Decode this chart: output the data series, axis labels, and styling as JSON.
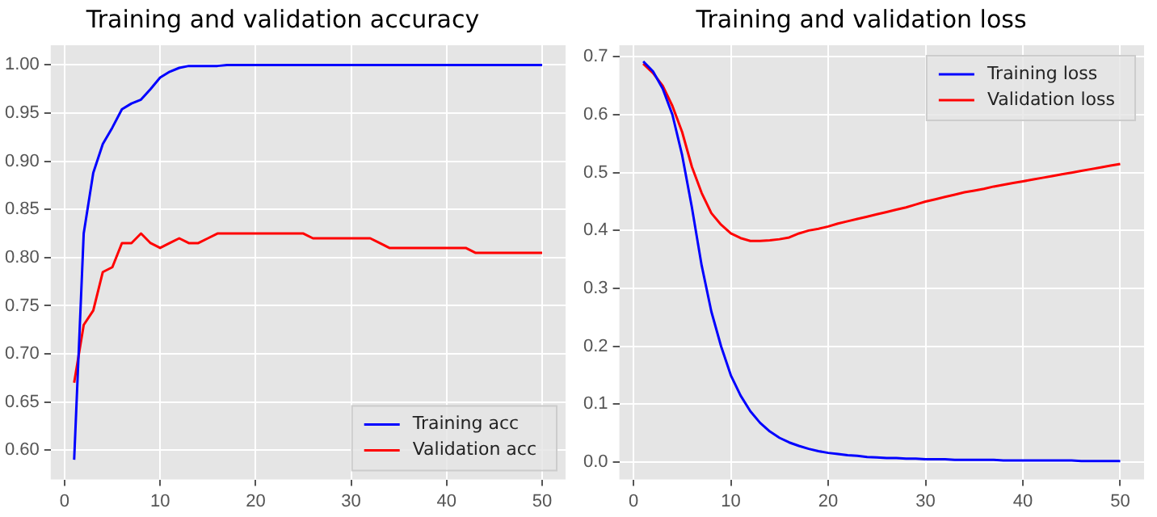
{
  "chart_data": [
    {
      "type": "line",
      "title": "Training and validation accuracy",
      "xlim": [
        -1.45,
        52.45
      ],
      "xticks": [
        0,
        10,
        20,
        30,
        40,
        50
      ],
      "ylim": [
        0.5695,
        1.0205
      ],
      "yticks": [
        {
          "value": 0.6,
          "label": "0.60"
        },
        {
          "value": 0.65,
          "label": "0.65"
        },
        {
          "value": 0.7,
          "label": "0.70"
        },
        {
          "value": 0.75,
          "label": "0.75"
        },
        {
          "value": 0.8,
          "label": "0.80"
        },
        {
          "value": 0.85,
          "label": "0.85"
        },
        {
          "value": 0.9,
          "label": "0.90"
        },
        {
          "value": 0.95,
          "label": "0.95"
        },
        {
          "value": 1.0,
          "label": "1.00"
        }
      ],
      "grid": true,
      "legend": "bottom right",
      "marker": "none",
      "line_style": "solid",
      "x": [
        1,
        2,
        3,
        4,
        5,
        6,
        7,
        8,
        9,
        10,
        11,
        12,
        13,
        14,
        15,
        16,
        17,
        18,
        19,
        20,
        21,
        22,
        23,
        24,
        25,
        26,
        27,
        28,
        29,
        30,
        31,
        32,
        33,
        34,
        35,
        36,
        37,
        38,
        39,
        40,
        41,
        42,
        43,
        44,
        45,
        46,
        47,
        48,
        49,
        50
      ],
      "series": [
        {
          "name": "Training acc",
          "color": "#0000ff",
          "values": [
            0.59,
            0.825,
            0.888,
            0.918,
            0.935,
            0.954,
            0.96,
            0.964,
            0.975,
            0.987,
            0.993,
            0.997,
            0.999,
            0.999,
            0.999,
            0.999,
            1.0,
            1.0,
            1.0,
            1.0,
            1.0,
            1.0,
            1.0,
            1.0,
            1.0,
            1.0,
            1.0,
            1.0,
            1.0,
            1.0,
            1.0,
            1.0,
            1.0,
            1.0,
            1.0,
            1.0,
            1.0,
            1.0,
            1.0,
            1.0,
            1.0,
            1.0,
            1.0,
            1.0,
            1.0,
            1.0,
            1.0,
            1.0,
            1.0,
            1.0
          ]
        },
        {
          "name": "Validation acc",
          "color": "#ff0000",
          "values": [
            0.67,
            0.73,
            0.745,
            0.785,
            0.79,
            0.815,
            0.815,
            0.825,
            0.815,
            0.81,
            0.815,
            0.82,
            0.815,
            0.815,
            0.82,
            0.825,
            0.825,
            0.825,
            0.825,
            0.825,
            0.825,
            0.825,
            0.825,
            0.825,
            0.825,
            0.82,
            0.82,
            0.82,
            0.82,
            0.82,
            0.82,
            0.82,
            0.815,
            0.81,
            0.81,
            0.81,
            0.81,
            0.81,
            0.81,
            0.81,
            0.81,
            0.81,
            0.805,
            0.805,
            0.805,
            0.805,
            0.805,
            0.805,
            0.805,
            0.805
          ]
        }
      ]
    },
    {
      "type": "line",
      "title": "Training and validation loss",
      "xlim": [
        -1.45,
        52.45
      ],
      "xticks": [
        0,
        10,
        20,
        30,
        40,
        50
      ],
      "ylim": [
        -0.03,
        0.72
      ],
      "yticks": [
        {
          "value": 0,
          "label": "0.0"
        },
        {
          "value": 0.1,
          "label": "0.1"
        },
        {
          "value": 0.2,
          "label": "0.2"
        },
        {
          "value": 0.3,
          "label": "0.3"
        },
        {
          "value": 0.4,
          "label": "0.4"
        },
        {
          "value": 0.5,
          "label": "0.5"
        },
        {
          "value": 0.6,
          "label": "0.6"
        },
        {
          "value": 0.7,
          "label": "0.7"
        }
      ],
      "grid": true,
      "legend": "top right",
      "marker": "none",
      "line_style": "solid",
      "x": [
        1,
        2,
        3,
        4,
        5,
        6,
        7,
        8,
        9,
        10,
        11,
        12,
        13,
        14,
        15,
        16,
        17,
        18,
        19,
        20,
        21,
        22,
        23,
        24,
        25,
        26,
        27,
        28,
        29,
        30,
        31,
        32,
        33,
        34,
        35,
        36,
        37,
        38,
        39,
        40,
        41,
        42,
        43,
        44,
        45,
        46,
        47,
        48,
        49,
        50
      ],
      "series": [
        {
          "name": "Training loss",
          "color": "#0000ff",
          "values": [
            0.692,
            0.675,
            0.645,
            0.6,
            0.53,
            0.44,
            0.34,
            0.26,
            0.2,
            0.15,
            0.115,
            0.088,
            0.068,
            0.053,
            0.042,
            0.034,
            0.028,
            0.023,
            0.019,
            0.016,
            0.014,
            0.012,
            0.011,
            0.009,
            0.008,
            0.007,
            0.007,
            0.006,
            0.006,
            0.005,
            0.005,
            0.005,
            0.004,
            0.004,
            0.004,
            0.004,
            0.004,
            0.003,
            0.003,
            0.003,
            0.003,
            0.003,
            0.003,
            0.003,
            0.003,
            0.002,
            0.002,
            0.002,
            0.002,
            0.002
          ]
        },
        {
          "name": "Validation loss",
          "color": "#ff0000",
          "values": [
            0.688,
            0.672,
            0.65,
            0.615,
            0.57,
            0.51,
            0.465,
            0.43,
            0.41,
            0.395,
            0.387,
            0.382,
            0.382,
            0.383,
            0.385,
            0.388,
            0.395,
            0.4,
            0.403,
            0.407,
            0.412,
            0.416,
            0.42,
            0.424,
            0.428,
            0.432,
            0.436,
            0.44,
            0.445,
            0.45,
            0.454,
            0.458,
            0.462,
            0.466,
            0.469,
            0.472,
            0.476,
            0.479,
            0.482,
            0.485,
            0.488,
            0.491,
            0.494,
            0.497,
            0.5,
            0.503,
            0.506,
            0.509,
            0.512,
            0.515
          ]
        }
      ]
    }
  ]
}
